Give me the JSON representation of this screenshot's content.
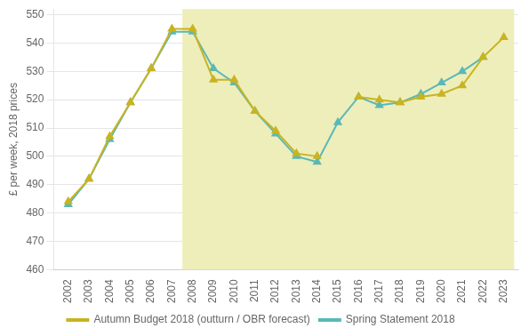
{
  "chart_data": {
    "type": "line",
    "y_label": "£ per week, 2018 prices",
    "x": [
      2002,
      2003,
      2004,
      2005,
      2006,
      2007,
      2008,
      2009,
      2010,
      2011,
      2012,
      2013,
      2014,
      2015,
      2016,
      2017,
      2018,
      2019,
      2020,
      2021,
      2022,
      2023
    ],
    "series": [
      {
        "name": "Autumn Budget 2018 (outturn / OBR forecast)",
        "color": "#c8b420",
        "marker": "triangle",
        "line_style": "solid",
        "values": [
          484,
          492,
          507,
          519,
          531,
          545,
          545,
          527,
          527,
          516,
          509,
          501,
          500,
          null,
          521,
          520,
          519,
          521,
          522,
          525,
          535,
          542
        ]
      },
      {
        "name": "Spring Statement 2018",
        "color": "#5ab8b8",
        "marker": "triangle",
        "line_style": "solid",
        "values": [
          483,
          492,
          506,
          519,
          531,
          544,
          544,
          531,
          526,
          516,
          508,
          500,
          498,
          512,
          521,
          518,
          519,
          522,
          526,
          530,
          535,
          null
        ]
      }
    ],
    "xlim": [
      2001.3,
      2023.7
    ],
    "xticks": [
      2002,
      2003,
      2004,
      2005,
      2006,
      2007,
      2008,
      2009,
      2010,
      2011,
      2012,
      2013,
      2014,
      2015,
      2016,
      2017,
      2018,
      2019,
      2020,
      2021,
      2022,
      2023
    ],
    "ylim": [
      460,
      552
    ],
    "yticks": [
      460,
      470,
      480,
      490,
      500,
      510,
      520,
      530,
      540,
      550
    ],
    "shaded_region": {
      "start": 2007.5,
      "end": 2023.5,
      "color": "#eeeebb"
    },
    "grid": "y",
    "legend": "bottom"
  }
}
